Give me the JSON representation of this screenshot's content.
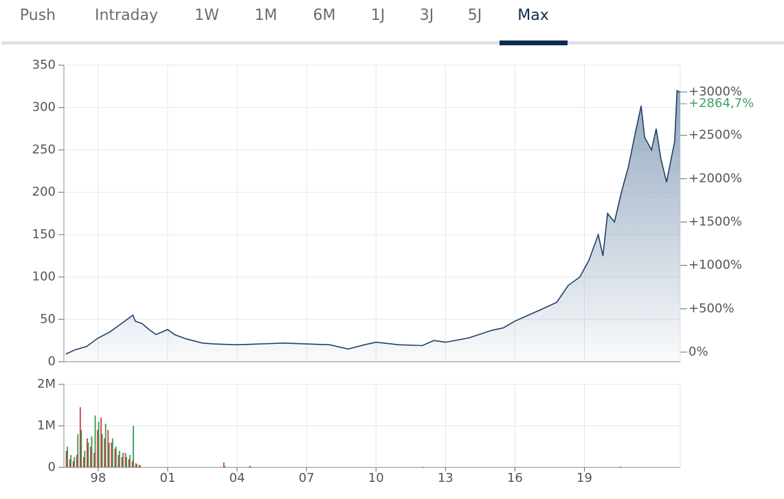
{
  "tabs": {
    "items": [
      "Push",
      "Intraday",
      "1W",
      "1M",
      "6M",
      "1J",
      "3J",
      "5J",
      "Max"
    ],
    "active": "Max"
  },
  "chart_data": [
    {
      "type": "line",
      "color": "#1f3f66",
      "x": [
        1996.6,
        1997.0,
        1997.5,
        1998.0,
        1998.5,
        1999.0,
        1999.5,
        1999.6,
        1999.9,
        2000.2,
        2000.5,
        2001.0,
        2001.3,
        2001.8,
        2002.5,
        2003.0,
        2004.0,
        2005.0,
        2006.0,
        2007.0,
        2008.0,
        2008.8,
        2009.5,
        2010.0,
        2011.0,
        2012.0,
        2012.5,
        2013.0,
        2014.0,
        2015.0,
        2015.5,
        2016.0,
        2017.0,
        2017.8,
        2018.3,
        2018.8,
        2019.2,
        2019.6,
        2019.8,
        2020.0,
        2020.3,
        2020.6,
        2020.9,
        2021.2,
        2021.45,
        2021.6,
        2021.9,
        2022.1,
        2022.3,
        2022.55,
        2022.75,
        2022.9,
        2023.0,
        2023.14
      ],
      "values": [
        9,
        14,
        18,
        28,
        35,
        45,
        55,
        48,
        45,
        38,
        32,
        38,
        32,
        27,
        22,
        21,
        20,
        21,
        22,
        21,
        20,
        15,
        20,
        23,
        20,
        19,
        25,
        23,
        28,
        37,
        40,
        48,
        60,
        70,
        90,
        100,
        120,
        150,
        125,
        175,
        165,
        200,
        230,
        270,
        302,
        265,
        250,
        275,
        240,
        212,
        240,
        260,
        320,
        318
      ],
      "xlim": [
        1996.52,
        2023.14
      ],
      "ylim": [
        0,
        350
      ],
      "yticks": [
        0,
        50,
        100,
        150,
        200,
        250,
        300,
        350
      ],
      "y2lim": [
        -111,
        3309
      ],
      "y2ticks": [
        {
          "value": 0,
          "label": "0%"
        },
        {
          "value": 500,
          "label": "+500%"
        },
        {
          "value": 1000,
          "label": "+1000%"
        },
        {
          "value": 1500,
          "label": "+1500%"
        },
        {
          "value": 2000,
          "label": "+2000%"
        },
        {
          "value": 2500,
          "label": "+2500%"
        },
        {
          "value": 3000,
          "label": "+3000%"
        }
      ],
      "current_change": {
        "value": 2864.7,
        "label": "+2864,7%",
        "color": "#3aa561"
      },
      "grid": true
    },
    {
      "type": "bar",
      "x": [
        1996.6,
        1996.75,
        1996.9,
        1997.05,
        1997.2,
        1997.35,
        1997.5,
        1997.65,
        1997.8,
        1997.95,
        1998.1,
        1998.25,
        1998.4,
        1998.55,
        1998.7,
        1998.85,
        1999.0,
        1999.15,
        1999.3,
        1999.45,
        1999.6,
        1999.75,
        2003.4,
        2004.5,
        2012.0,
        2020.5
      ],
      "series": [
        {
          "name": "down",
          "color": "#d9363e",
          "values": [
            400000,
            200000,
            150000,
            300000,
            1450000,
            250000,
            700000,
            500000,
            350000,
            900000,
            1200000,
            700000,
            900000,
            600000,
            450000,
            300000,
            250000,
            350000,
            200000,
            150000,
            100000,
            60000,
            120000,
            20000,
            15000,
            10000
          ]
        },
        {
          "name": "up",
          "color": "#2f9a50",
          "values": [
            500000,
            300000,
            250000,
            800000,
            900000,
            400000,
            600000,
            750000,
            1250000,
            1100000,
            800000,
            1050000,
            600000,
            700000,
            500000,
            400000,
            350000,
            250000,
            300000,
            1000000,
            80000,
            50000,
            30000,
            40000,
            10000,
            20000
          ]
        }
      ],
      "xlim": [
        1996.52,
        2023.14
      ],
      "xticks": [
        {
          "value": 1998,
          "label": "98"
        },
        {
          "value": 2001,
          "label": "01"
        },
        {
          "value": 2004,
          "label": "04"
        },
        {
          "value": 2007,
          "label": "07"
        },
        {
          "value": 2010,
          "label": "10"
        },
        {
          "value": 2013,
          "label": "13"
        },
        {
          "value": 2016,
          "label": "16"
        },
        {
          "value": 2019,
          "label": "19"
        }
      ],
      "ylim": [
        0,
        2000000
      ],
      "yticks": [
        0,
        {
          "value": 1000000,
          "label": "1M"
        },
        {
          "value": 2000000,
          "label": "2M"
        }
      ],
      "grid": true
    }
  ]
}
